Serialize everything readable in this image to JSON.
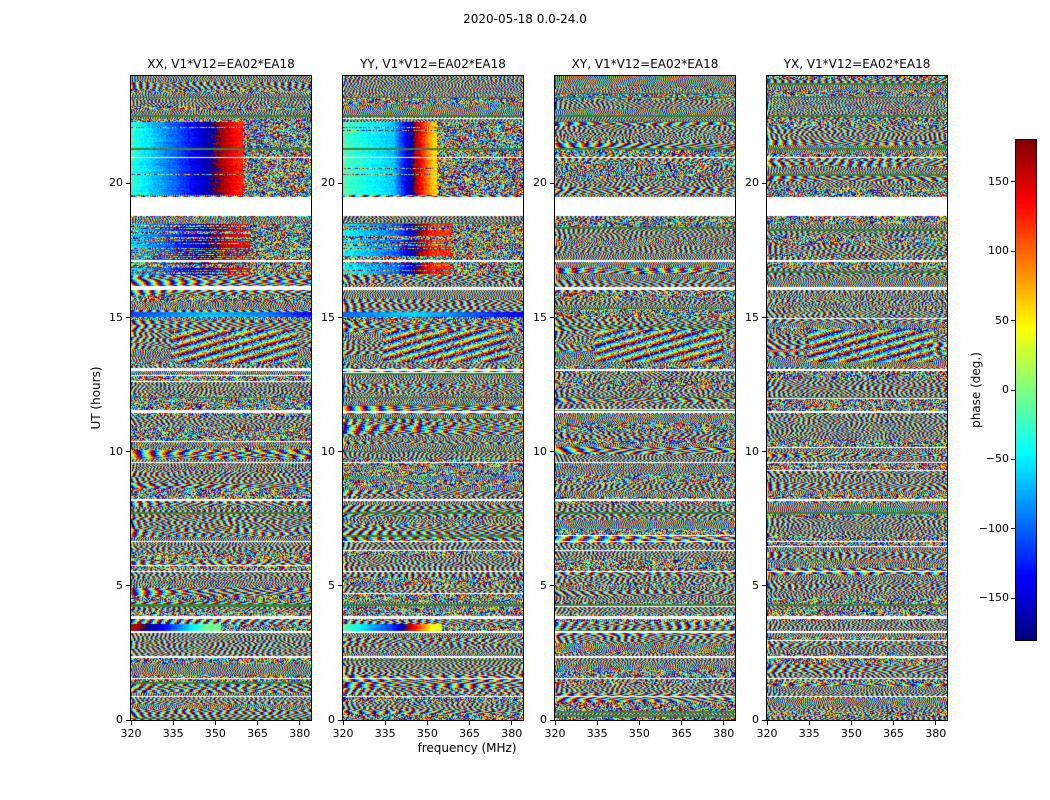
{
  "figure": {
    "title": "2020-05-18 0.0-24.0",
    "xlabel": "frequency (MHz)",
    "ylabel": "UT (hours)",
    "colorbar_label": "phase (deg.)"
  },
  "chart_data": {
    "type": "heatmap",
    "title": "2020-05-18 0.0-24.0",
    "panels": [
      {
        "pol": "XX",
        "title": "XX, V1*V12=EA02*EA18"
      },
      {
        "pol": "YY",
        "title": "YY, V1*V12=EA02*EA18"
      },
      {
        "pol": "XY",
        "title": "XY, V1*V12=EA02*EA18"
      },
      {
        "pol": "YX",
        "title": "YX, V1*V12=EA02*EA18"
      }
    ],
    "xlabel": "frequency (MHz)",
    "ylabel": "UT (hours)",
    "x_range": [
      320,
      384
    ],
    "x_ticks": [
      320,
      335,
      350,
      365,
      380
    ],
    "y_range": [
      0,
      24
    ],
    "y_ticks": [
      0,
      5,
      10,
      15,
      20
    ],
    "colorbar": {
      "label": "phase (deg.)",
      "range": [
        -180,
        180
      ],
      "ticks": [
        150,
        100,
        50,
        0,
        -50,
        -100,
        -150
      ],
      "tick_labels": [
        "150",
        "100",
        "50",
        "0",
        "−50",
        "−100",
        "−150"
      ],
      "colormap": "jet"
    },
    "content_description": "Interferometric visibility phase versus UT time and frequency for baseline V1*V12=EA02*EA18 on 2020-05-18, four polarization products XX/YY/XY/YX; mostly noise-like wrapped-phase fringes with blank (flagged) time rows and a few coherent phase bands",
    "blank_time_ranges_hours": [
      [
        18.8,
        19.5
      ],
      [
        20.93,
        20.99
      ],
      [
        17.08,
        17.13
      ],
      [
        16.02,
        16.14
      ],
      [
        13.0,
        13.07
      ],
      [
        11.45,
        11.52
      ],
      [
        9.56,
        9.63
      ],
      [
        8.18,
        8.25
      ],
      [
        6.62,
        6.68
      ],
      [
        5.5,
        5.56
      ],
      [
        3.76,
        3.86
      ],
      [
        3.24,
        3.3
      ],
      [
        2.3,
        2.4
      ],
      [
        1.52,
        1.57
      ],
      [
        0.86,
        0.9
      ]
    ],
    "dark_lines_hours": [
      23.2,
      22.52,
      21.27,
      12.02,
      7.72,
      4.3
    ],
    "coherent_bands": [
      {
        "panels": [
          "XX",
          "YY"
        ],
        "hours": [
          19.55,
          22.3
        ],
        "description": "smooth phase gradient: red/orange at low frequency through yellow-green to cyan near ~358 MHz, noise above"
      },
      {
        "panels": [
          "XX",
          "YY"
        ],
        "hours": [
          16.6,
          18.5
        ],
        "description": "partially coherent warm phase band with noise rows interleaved"
      },
      {
        "panels": [
          "XX",
          "YY"
        ],
        "hours": [
          15.02,
          15.22
        ],
        "description": "bright narrow yellow/orange band across all frequencies"
      },
      {
        "panels": [
          "XX",
          "YY"
        ],
        "hours": [
          3.33,
          3.58
        ],
        "description": "bright phase-ramp band (green-yellow-red in XX, red-yellow-blue in YY), noise at high frequency"
      },
      {
        "panels": [
          "XX",
          "YY",
          "XY",
          "YX"
        ],
        "hours": [
          13.35,
          14.55
        ],
        "description": "diagonal fringe streaks"
      }
    ]
  }
}
